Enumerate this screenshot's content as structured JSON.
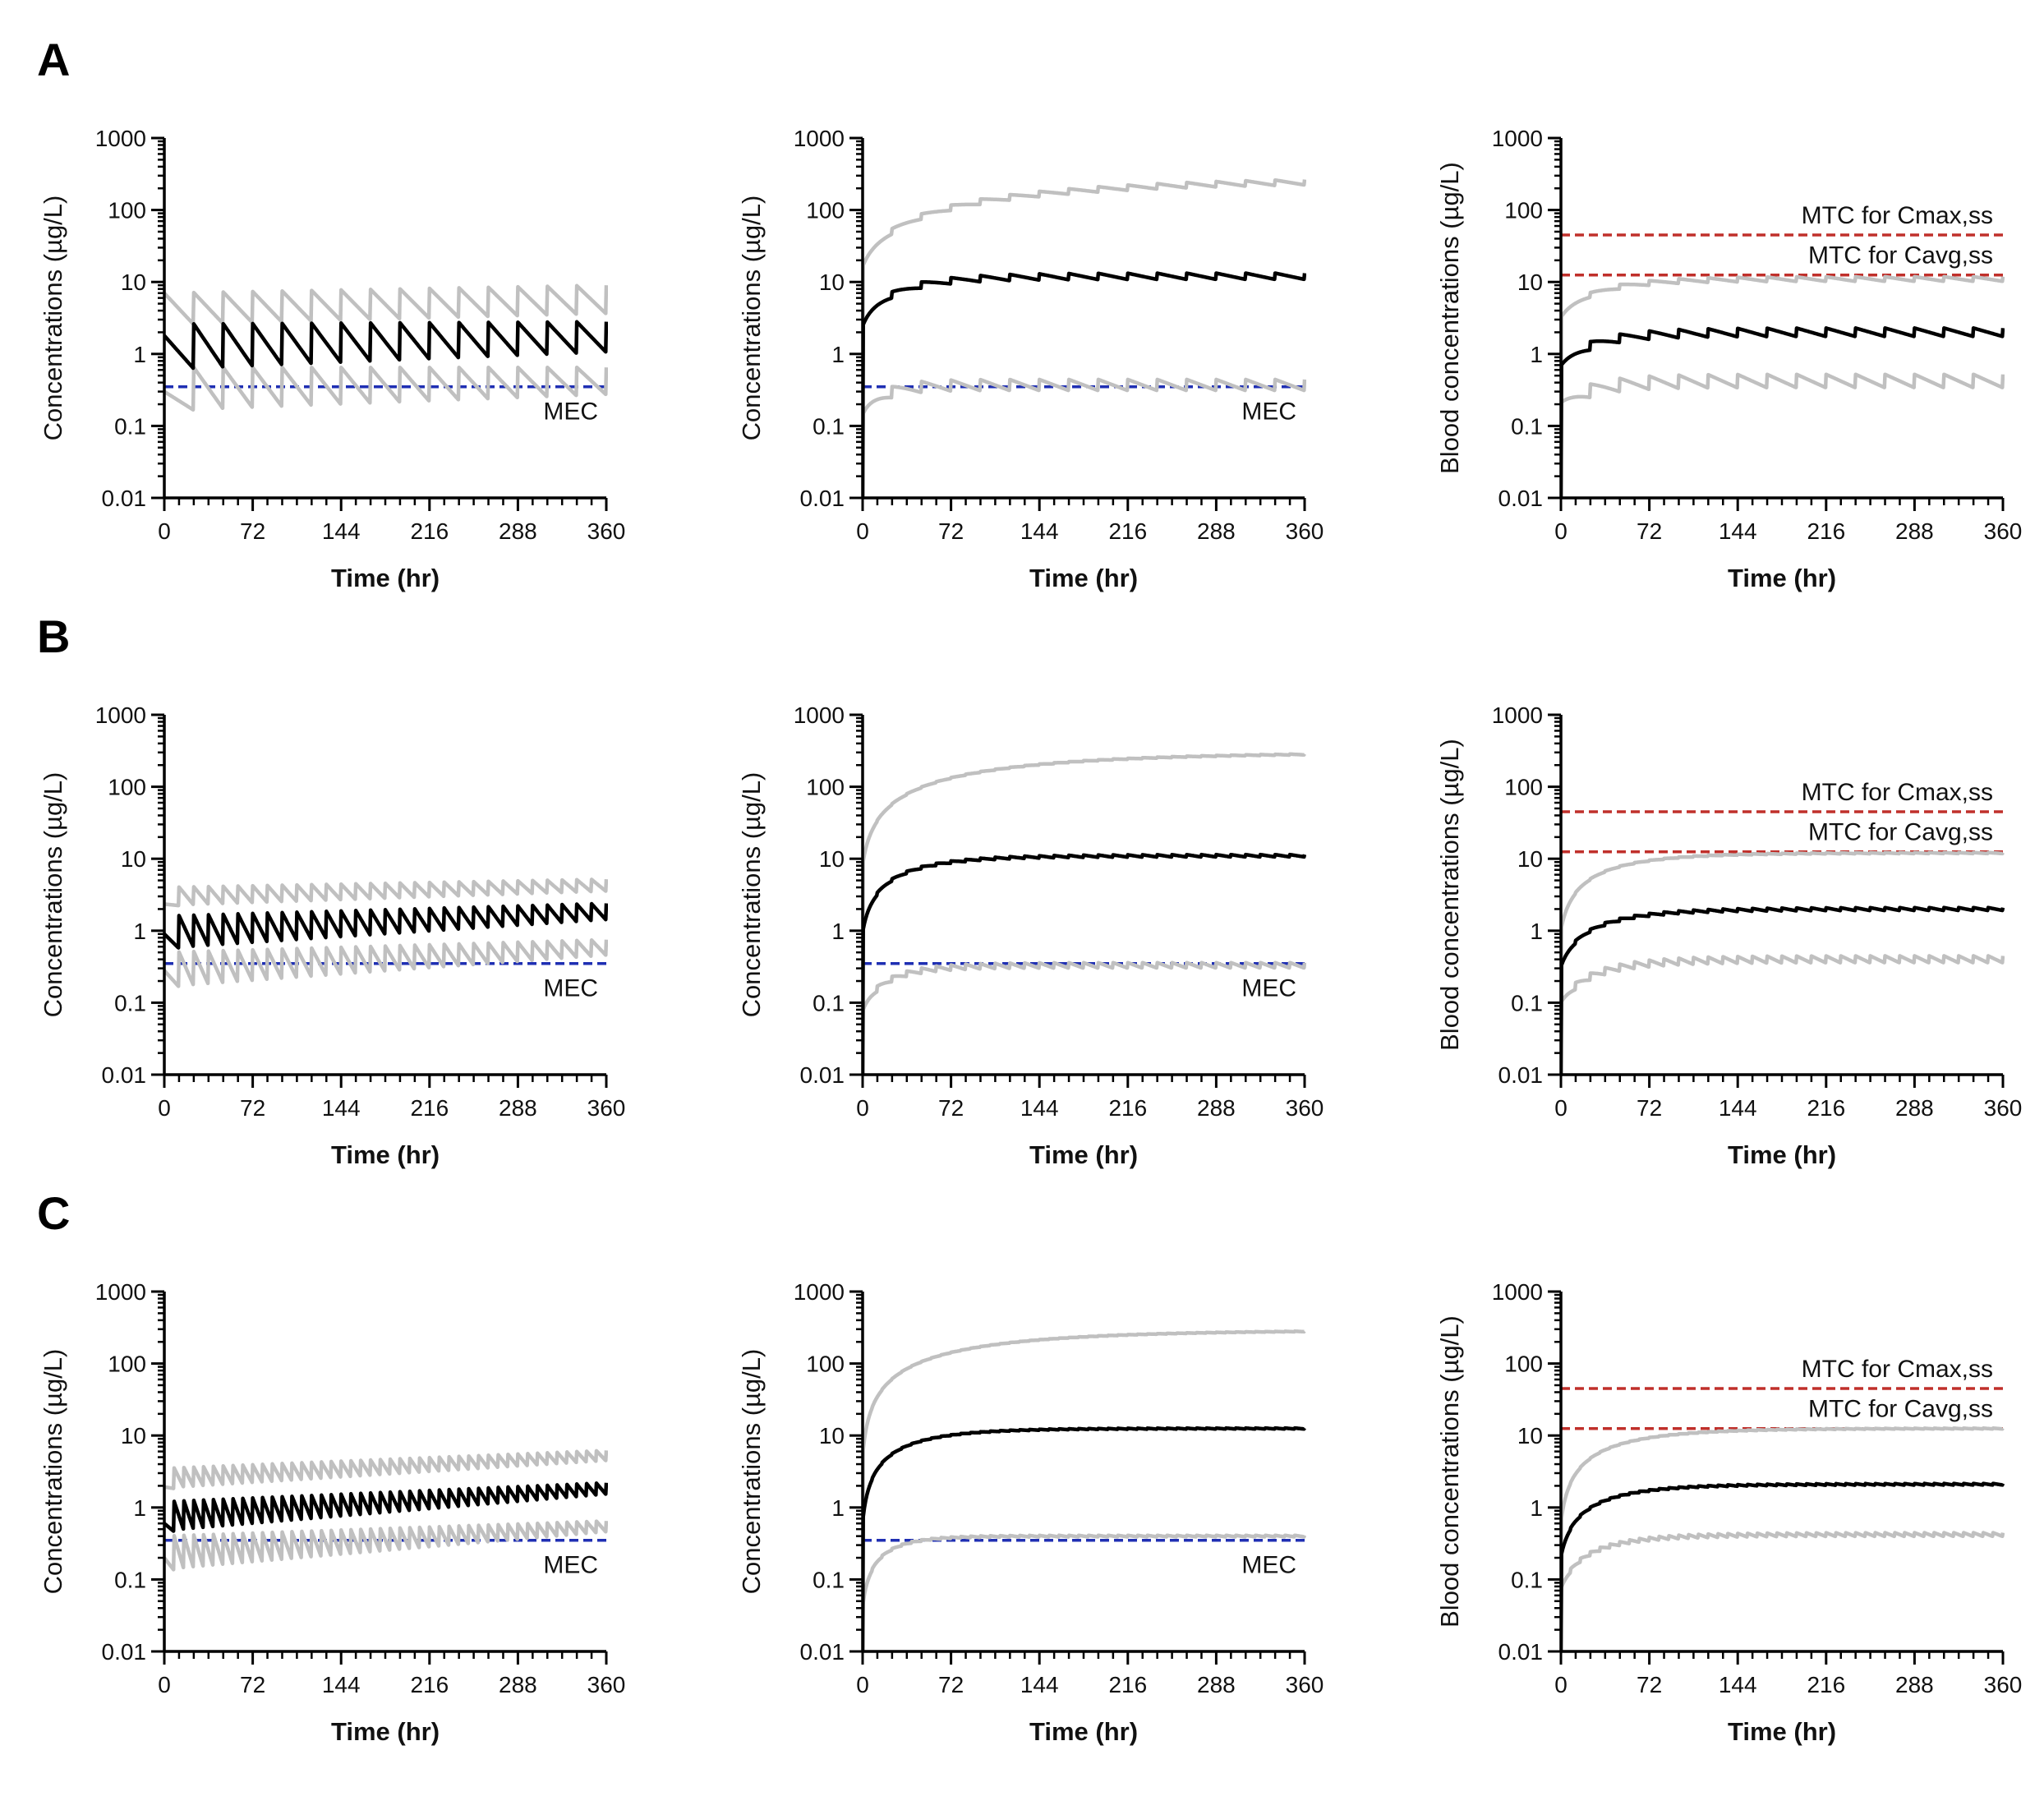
{
  "figure": {
    "row_labels": [
      "A",
      "B",
      "C"
    ]
  },
  "colors": {
    "median": "#000000",
    "percentile": "#c0c0c0",
    "mec": "#1f2fb3",
    "mtc": "#c0302b",
    "axis": "#000000"
  },
  "chart_data": [
    {
      "row": "A",
      "col": 1,
      "type": "line",
      "yscale": "log",
      "xlabel": "Time (hr)",
      "ylabel": "Concentrations (µg/L)",
      "xlim": [
        0,
        360
      ],
      "ylim": [
        0.01,
        1000
      ],
      "xticks": [
        "0",
        "72",
        "144",
        "216",
        "288",
        "360"
      ],
      "yticks": [
        "0.01",
        "0.1",
        "1",
        "10",
        "100",
        "1000"
      ],
      "interval_hr": 24,
      "shape": "bolus",
      "series": [
        {
          "role": "upper",
          "start": 7,
          "peak_start": 7,
          "peak_end": 9,
          "trough_start": 2.5,
          "trough_end": 3.6
        },
        {
          "role": "median",
          "start": 1.8,
          "peak_start": 2.6,
          "peak_end": 2.8,
          "trough_start": 0.6,
          "trough_end": 1.05
        },
        {
          "role": "lower",
          "start": 0.3,
          "peak_start": 0.65,
          "peak_end": 0.65,
          "trough_start": 0.16,
          "trough_end": 0.27
        }
      ],
      "reference_lines": [
        {
          "kind": "mec",
          "label": "MEC",
          "y": 0.35
        }
      ]
    },
    {
      "row": "A",
      "col": 2,
      "type": "line",
      "yscale": "log",
      "xlabel": "Time (hr)",
      "ylabel": "Concentrations (µg/L)",
      "xlim": [
        0,
        360
      ],
      "ylim": [
        0.01,
        1000
      ],
      "xticks": [
        "0",
        "72",
        "144",
        "216",
        "288",
        "360"
      ],
      "yticks": [
        "0.01",
        "0.1",
        "1",
        "10",
        "100",
        "1000"
      ],
      "interval_hr": 24,
      "shape": "accumulating",
      "series": [
        {
          "role": "upper",
          "first": 15,
          "final": 270,
          "tau_hr": 160,
          "swing": 1.3
        },
        {
          "role": "median",
          "first": 2.2,
          "final": 12,
          "tau_hr": 40,
          "swing": 1.35
        },
        {
          "role": "lower",
          "first": 0.12,
          "final": 0.37,
          "tau_hr": 20,
          "swing": 1.7
        }
      ],
      "reference_lines": [
        {
          "kind": "mec",
          "label": "MEC",
          "y": 0.35
        }
      ]
    },
    {
      "row": "A",
      "col": 3,
      "type": "line",
      "yscale": "log",
      "xlabel": "Time (hr)",
      "ylabel": "Blood concentrations (µg/L)",
      "xlim": [
        0,
        360
      ],
      "ylim": [
        0.01,
        1000
      ],
      "xticks": [
        "0",
        "72",
        "144",
        "216",
        "288",
        "360"
      ],
      "yticks": [
        "0.01",
        "0.1",
        "1",
        "10",
        "100",
        "1000"
      ],
      "interval_hr": 24,
      "shape": "accumulating",
      "series": [
        {
          "role": "upper",
          "first": 3,
          "final": 11,
          "tau_hr": 40,
          "swing": 1.25
        },
        {
          "role": "median",
          "first": 0.6,
          "final": 2,
          "tau_hr": 35,
          "swing": 1.5
        },
        {
          "role": "lower",
          "first": 0.17,
          "final": 0.42,
          "tau_hr": 30,
          "swing": 1.9
        }
      ],
      "reference_lines": [
        {
          "kind": "mtc",
          "label": "MTC for Cmax,ss",
          "y": 45
        },
        {
          "kind": "mtc",
          "label": "MTC for Cavg,ss",
          "y": 12.5
        }
      ]
    },
    {
      "row": "B",
      "col": 1,
      "type": "line",
      "yscale": "log",
      "xlabel": "Time (hr)",
      "ylabel": "Concentrations (µg/L)",
      "xlim": [
        0,
        360
      ],
      "ylim": [
        0.01,
        1000
      ],
      "xticks": [
        "0",
        "72",
        "144",
        "216",
        "288",
        "360"
      ],
      "yticks": [
        "0.01",
        "0.1",
        "1",
        "10",
        "100",
        "1000"
      ],
      "interval_hr": 12,
      "shape": "bolus",
      "series": [
        {
          "role": "upper",
          "start": 2,
          "peak_start": 4,
          "peak_end": 5.2,
          "trough_start": 2.2,
          "trough_end": 3.5
        },
        {
          "role": "median",
          "start": 0.9,
          "peak_start": 1.6,
          "peak_end": 2.4,
          "trough_start": 0.55,
          "trough_end": 1.4
        },
        {
          "role": "lower",
          "start": 0.28,
          "peak_start": 0.5,
          "peak_end": 0.75,
          "trough_start": 0.16,
          "trough_end": 0.45
        }
      ],
      "reference_lines": [
        {
          "kind": "mec",
          "label": "MEC",
          "y": 0.35
        }
      ]
    },
    {
      "row": "B",
      "col": 2,
      "type": "line",
      "yscale": "log",
      "xlabel": "Time (hr)",
      "ylabel": "Concentrations (µg/L)",
      "xlim": [
        0,
        360
      ],
      "ylim": [
        0.01,
        1000
      ],
      "xticks": [
        "0",
        "72",
        "144",
        "216",
        "288",
        "360"
      ],
      "yticks": [
        "0.01",
        "0.1",
        "1",
        "10",
        "100",
        "1000"
      ],
      "interval_hr": 12,
      "shape": "accumulating",
      "series": [
        {
          "role": "upper",
          "first": 8,
          "final": 300,
          "tau_hr": 130,
          "swing": 1.05
        },
        {
          "role": "median",
          "first": 0.9,
          "final": 11,
          "tau_hr": 45,
          "swing": 1.12
        },
        {
          "role": "lower",
          "first": 0.07,
          "final": 0.33,
          "tau_hr": 30,
          "swing": 1.3
        }
      ],
      "reference_lines": [
        {
          "kind": "mec",
          "label": "MEC",
          "y": 0.35
        }
      ]
    },
    {
      "row": "B",
      "col": 3,
      "type": "line",
      "yscale": "log",
      "xlabel": "Time (hr)",
      "ylabel": "Blood concentrations (µg/L)",
      "xlim": [
        0,
        360
      ],
      "ylim": [
        0.01,
        1000
      ],
      "xticks": [
        "0",
        "72",
        "144",
        "216",
        "288",
        "360"
      ],
      "yticks": [
        "0.01",
        "0.1",
        "1",
        "10",
        "100",
        "1000"
      ],
      "interval_hr": 12,
      "shape": "accumulating",
      "series": [
        {
          "role": "upper",
          "first": 1,
          "final": 12,
          "tau_hr": 50,
          "swing": 1.05
        },
        {
          "role": "median",
          "first": 0.3,
          "final": 2,
          "tau_hr": 45,
          "swing": 1.15
        },
        {
          "role": "lower",
          "first": 0.09,
          "final": 0.4,
          "tau_hr": 40,
          "swing": 1.4
        }
      ],
      "reference_lines": [
        {
          "kind": "mtc",
          "label": "MTC for Cmax,ss",
          "y": 45
        },
        {
          "kind": "mtc",
          "label": "MTC for Cavg,ss",
          "y": 12.5
        }
      ]
    },
    {
      "row": "C",
      "col": 1,
      "type": "line",
      "yscale": "log",
      "xlabel": "Time (hr)",
      "ylabel": "Concentrations (µg/L)",
      "xlim": [
        0,
        360
      ],
      "ylim": [
        0.01,
        1000
      ],
      "xticks": [
        "0",
        "72",
        "144",
        "216",
        "288",
        "360"
      ],
      "yticks": [
        "0.01",
        "0.1",
        "1",
        "10",
        "100",
        "1000"
      ],
      "interval_hr": 8,
      "shape": "bolus",
      "series": [
        {
          "role": "upper",
          "start": 1.5,
          "peak_start": 3.5,
          "peak_end": 6.2,
          "trough_start": 1.8,
          "trough_end": 4.4
        },
        {
          "role": "median",
          "start": 0.6,
          "peak_start": 1.2,
          "peak_end": 2.2,
          "trough_start": 0.45,
          "trough_end": 1.5
        },
        {
          "role": "lower",
          "start": 0.2,
          "peak_start": 0.4,
          "peak_end": 0.65,
          "trough_start": 0.13,
          "trough_end": 0.45
        }
      ],
      "reference_lines": [
        {
          "kind": "mec",
          "label": "MEC",
          "y": 0.35
        }
      ]
    },
    {
      "row": "C",
      "col": 2,
      "type": "line",
      "yscale": "log",
      "xlabel": "Time (hr)",
      "ylabel": "Concentrations (µg/L)",
      "xlim": [
        0,
        360
      ],
      "ylim": [
        0.01,
        1000
      ],
      "xticks": [
        "0",
        "72",
        "144",
        "216",
        "288",
        "360"
      ],
      "yticks": [
        "0.01",
        "0.1",
        "1",
        "10",
        "100",
        "1000"
      ],
      "interval_hr": 8,
      "shape": "accumulating",
      "series": [
        {
          "role": "upper",
          "first": 5,
          "final": 290,
          "tau_hr": 110,
          "swing": 1.03
        },
        {
          "role": "median",
          "first": 0.6,
          "final": 12.5,
          "tau_hr": 45,
          "swing": 1.05
        },
        {
          "role": "lower",
          "first": 0.04,
          "final": 0.4,
          "tau_hr": 25,
          "swing": 1.08
        }
      ],
      "reference_lines": [
        {
          "kind": "mec",
          "label": "MEC",
          "y": 0.35
        }
      ]
    },
    {
      "row": "C",
      "col": 3,
      "type": "line",
      "yscale": "log",
      "xlabel": "Time (hr)",
      "ylabel": "Blood concentrations (µg/L)",
      "xlim": [
        0,
        360
      ],
      "ylim": [
        0.01,
        1000
      ],
      "xticks": [
        "0",
        "72",
        "144",
        "216",
        "288",
        "360"
      ],
      "yticks": [
        "0.01",
        "0.1",
        "1",
        "10",
        "100",
        "1000"
      ],
      "interval_hr": 8,
      "shape": "accumulating",
      "series": [
        {
          "role": "upper",
          "first": 0.6,
          "final": 12.5,
          "tau_hr": 55,
          "swing": 1.04
        },
        {
          "role": "median",
          "first": 0.2,
          "final": 2.1,
          "tau_hr": 45,
          "swing": 1.08
        },
        {
          "role": "lower",
          "first": 0.07,
          "final": 0.42,
          "tau_hr": 40,
          "swing": 1.2
        }
      ],
      "reference_lines": [
        {
          "kind": "mtc",
          "label": "MTC for Cmax,ss",
          "y": 45
        },
        {
          "kind": "mtc",
          "label": "MTC for Cavg,ss",
          "y": 12.5
        }
      ]
    }
  ]
}
